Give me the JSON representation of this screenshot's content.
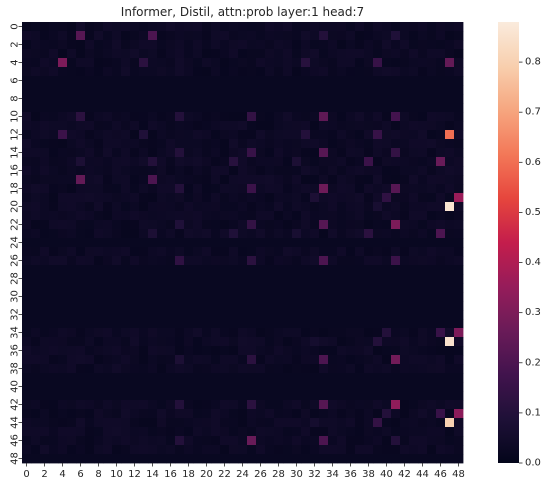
{
  "chart_data": {
    "type": "heatmap",
    "title": "Informer, Distil, attn:prob layer:1 head:7",
    "xlabel": "",
    "ylabel": "",
    "rows": 49,
    "cols": 49,
    "x_tick_labels": [
      "0",
      "2",
      "4",
      "6",
      "8",
      "10",
      "12",
      "14",
      "16",
      "18",
      "20",
      "22",
      "24",
      "26",
      "28",
      "30",
      "32",
      "34",
      "36",
      "38",
      "40",
      "42",
      "44",
      "46",
      "48"
    ],
    "y_tick_labels": [
      "0",
      "2",
      "4",
      "6",
      "8",
      "10",
      "12",
      "14",
      "16",
      "18",
      "20",
      "22",
      "24",
      "26",
      "28",
      "30",
      "32",
      "34",
      "36",
      "38",
      "40",
      "42",
      "44",
      "46",
      "48"
    ],
    "colorbar": {
      "min": 0.0,
      "max": 0.88,
      "colormap": "rocket",
      "tick_values": [
        0.0,
        0.1,
        0.2,
        0.3,
        0.4,
        0.5,
        0.6,
        0.7,
        0.8
      ],
      "tick_labels": [
        "0.0",
        "0.1",
        "0.2",
        "0.3",
        "0.4",
        "0.5",
        "0.6",
        "0.7",
        "0.8"
      ]
    },
    "uniform_rows": {
      "value": 0.02,
      "rows": [
        6,
        7,
        8,
        9,
        24,
        27,
        28,
        29,
        30,
        31,
        32,
        33,
        39,
        40,
        41,
        48
      ]
    },
    "background_value": 0.03,
    "cells": [
      {
        "r": 1,
        "c": 6,
        "v": 0.22
      },
      {
        "r": 1,
        "c": 14,
        "v": 0.2
      },
      {
        "r": 1,
        "c": 33,
        "v": 0.1
      },
      {
        "r": 1,
        "c": 41,
        "v": 0.09
      },
      {
        "r": 4,
        "c": 4,
        "v": 0.3
      },
      {
        "r": 4,
        "c": 13,
        "v": 0.12
      },
      {
        "r": 4,
        "c": 31,
        "v": 0.11
      },
      {
        "r": 4,
        "c": 39,
        "v": 0.15
      },
      {
        "r": 4,
        "c": 47,
        "v": 0.25
      },
      {
        "r": 10,
        "c": 6,
        "v": 0.12
      },
      {
        "r": 10,
        "c": 17,
        "v": 0.1
      },
      {
        "r": 10,
        "c": 25,
        "v": 0.14
      },
      {
        "r": 10,
        "c": 33,
        "v": 0.24
      },
      {
        "r": 10,
        "c": 41,
        "v": 0.18
      },
      {
        "r": 12,
        "c": 4,
        "v": 0.16
      },
      {
        "r": 12,
        "c": 13,
        "v": 0.09
      },
      {
        "r": 12,
        "c": 31,
        "v": 0.1
      },
      {
        "r": 12,
        "c": 39,
        "v": 0.15
      },
      {
        "r": 12,
        "c": 47,
        "v": 0.6
      },
      {
        "r": 14,
        "c": 17,
        "v": 0.1
      },
      {
        "r": 14,
        "c": 25,
        "v": 0.15
      },
      {
        "r": 14,
        "c": 33,
        "v": 0.22
      },
      {
        "r": 14,
        "c": 41,
        "v": 0.14
      },
      {
        "r": 15,
        "c": 6,
        "v": 0.08
      },
      {
        "r": 15,
        "c": 14,
        "v": 0.1
      },
      {
        "r": 15,
        "c": 23,
        "v": 0.11
      },
      {
        "r": 15,
        "c": 30,
        "v": 0.08
      },
      {
        "r": 15,
        "c": 38,
        "v": 0.16
      },
      {
        "r": 15,
        "c": 46,
        "v": 0.26
      },
      {
        "r": 17,
        "c": 6,
        "v": 0.25
      },
      {
        "r": 17,
        "c": 14,
        "v": 0.2
      },
      {
        "r": 18,
        "c": 17,
        "v": 0.1
      },
      {
        "r": 18,
        "c": 25,
        "v": 0.16
      },
      {
        "r": 18,
        "c": 33,
        "v": 0.27
      },
      {
        "r": 18,
        "c": 41,
        "v": 0.22
      },
      {
        "r": 19,
        "c": 32,
        "v": 0.08
      },
      {
        "r": 19,
        "c": 40,
        "v": 0.13
      },
      {
        "r": 19,
        "c": 48,
        "v": 0.36
      },
      {
        "r": 20,
        "c": 39,
        "v": 0.07
      },
      {
        "r": 20,
        "c": 47,
        "v": 0.86
      },
      {
        "r": 22,
        "c": 17,
        "v": 0.09
      },
      {
        "r": 22,
        "c": 25,
        "v": 0.14
      },
      {
        "r": 22,
        "c": 33,
        "v": 0.22
      },
      {
        "r": 22,
        "c": 41,
        "v": 0.3
      },
      {
        "r": 23,
        "c": 14,
        "v": 0.08
      },
      {
        "r": 23,
        "c": 23,
        "v": 0.09
      },
      {
        "r": 23,
        "c": 30,
        "v": 0.07
      },
      {
        "r": 23,
        "c": 38,
        "v": 0.12
      },
      {
        "r": 23,
        "c": 46,
        "v": 0.2
      },
      {
        "r": 26,
        "c": 17,
        "v": 0.13
      },
      {
        "r": 26,
        "c": 25,
        "v": 0.12
      },
      {
        "r": 26,
        "c": 33,
        "v": 0.2
      },
      {
        "r": 26,
        "c": 41,
        "v": 0.16
      },
      {
        "r": 34,
        "c": 40,
        "v": 0.1
      },
      {
        "r": 34,
        "c": 46,
        "v": 0.15
      },
      {
        "r": 34,
        "c": 48,
        "v": 0.3
      },
      {
        "r": 35,
        "c": 32,
        "v": 0.06
      },
      {
        "r": 35,
        "c": 39,
        "v": 0.1
      },
      {
        "r": 35,
        "c": 47,
        "v": 0.85
      },
      {
        "r": 37,
        "c": 17,
        "v": 0.08
      },
      {
        "r": 37,
        "c": 25,
        "v": 0.12
      },
      {
        "r": 37,
        "c": 33,
        "v": 0.2
      },
      {
        "r": 37,
        "c": 41,
        "v": 0.28
      },
      {
        "r": 42,
        "c": 17,
        "v": 0.1
      },
      {
        "r": 42,
        "c": 25,
        "v": 0.12
      },
      {
        "r": 42,
        "c": 33,
        "v": 0.22
      },
      {
        "r": 42,
        "c": 41,
        "v": 0.34
      },
      {
        "r": 43,
        "c": 40,
        "v": 0.1
      },
      {
        "r": 43,
        "c": 46,
        "v": 0.15
      },
      {
        "r": 43,
        "c": 48,
        "v": 0.33
      },
      {
        "r": 44,
        "c": 32,
        "v": 0.06
      },
      {
        "r": 44,
        "c": 39,
        "v": 0.14
      },
      {
        "r": 44,
        "c": 47,
        "v": 0.8
      },
      {
        "r": 46,
        "c": 17,
        "v": 0.1
      },
      {
        "r": 46,
        "c": 25,
        "v": 0.26
      },
      {
        "r": 46,
        "c": 33,
        "v": 0.2
      },
      {
        "r": 46,
        "c": 41,
        "v": 0.1
      }
    ]
  }
}
